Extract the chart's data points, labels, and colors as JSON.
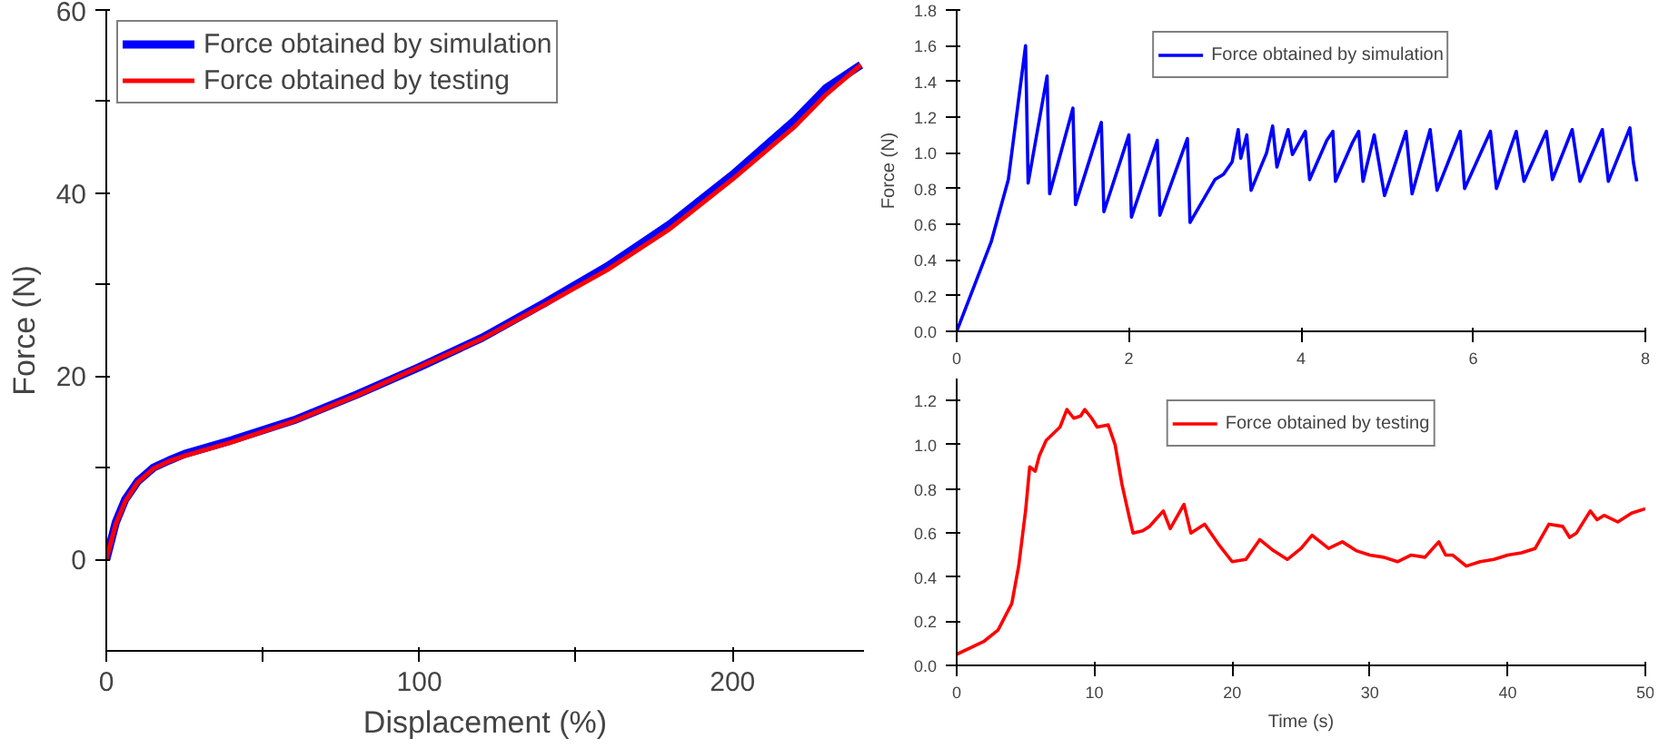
{
  "chart_data": [
    {
      "type": "line",
      "xlabel": "Displacement (%)",
      "ylabel": "Force (N)",
      "xlim": [
        0,
        242
      ],
      "ylim": [
        -10,
        60
      ],
      "xticks": [
        0,
        {
          "value": 50,
          "label": null
        },
        100,
        {
          "value": 150,
          "label": null
        },
        200
      ],
      "yticks": [
        0,
        {
          "value": 10,
          "label": null
        },
        20,
        {
          "value": 30,
          "label": null
        },
        40,
        {
          "value": 50,
          "label": null
        },
        60
      ],
      "legend": "top left",
      "grid": false,
      "line_style": "solid",
      "marker": "none",
      "series": [
        {
          "name": "Force obtained by simulation",
          "color": "#0000ff",
          "x": [
            0,
            3,
            6,
            10,
            15,
            20,
            25,
            40,
            60,
            80,
            100,
            120,
            140,
            160,
            180,
            200,
            220,
            230,
            241
          ],
          "values": [
            0,
            4,
            6.5,
            8.5,
            10,
            10.8,
            11.5,
            13,
            15.2,
            18,
            21,
            24.2,
            28,
            32,
            36.6,
            42,
            48,
            51.5,
            54
          ]
        },
        {
          "name": "Force obtained by testing",
          "color": "#ff0000",
          "x": [
            0,
            3,
            6,
            10,
            15,
            20,
            25,
            40,
            60,
            80,
            100,
            120,
            140,
            160,
            180,
            200,
            220,
            230,
            241
          ],
          "values": [
            0,
            3.8,
            6.3,
            8.4,
            9.9,
            10.7,
            11.3,
            12.8,
            15.1,
            17.9,
            21,
            24.1,
            27.8,
            31.6,
            36.1,
            41.5,
            47.3,
            50.8,
            54
          ]
        }
      ]
    },
    {
      "type": "line",
      "ylabel": "Force (N)",
      "xlim": [
        0,
        8
      ],
      "ylim": [
        0,
        1.8
      ],
      "xticks": [
        0,
        2,
        4,
        6,
        8
      ],
      "yticks": [
        {
          "value": 0,
          "label": "0.0"
        },
        0.2,
        0.4,
        0.6,
        0.8,
        {
          "value": 1,
          "label": "1.0"
        },
        1.2,
        1.4,
        1.6,
        1.8
      ],
      "legend": "top",
      "grid": false,
      "line_style": "solid",
      "marker": "none",
      "series": [
        {
          "name": "Force obtained by simulation",
          "color": "#0000ff",
          "x": [
            0,
            0.2,
            0.4,
            0.6,
            0.8,
            0.83,
            1.05,
            1.08,
            1.35,
            1.38,
            1.68,
            1.71,
            2.0,
            2.03,
            2.33,
            2.36,
            2.68,
            2.71,
            3.0,
            3.1,
            3.2,
            3.27,
            3.3,
            3.37,
            3.42,
            3.6,
            3.67,
            3.72,
            3.85,
            3.9,
            4.05,
            4.1,
            4.3,
            4.37,
            4.4,
            4.6,
            4.67,
            4.72,
            4.85,
            4.97,
            5.22,
            5.29,
            5.5,
            5.58,
            5.85,
            5.9,
            6.2,
            6.27,
            6.5,
            6.59,
            6.85,
            6.92,
            7.15,
            7.24,
            7.5,
            7.57,
            7.82,
            7.86,
            7.9
          ],
          "values": [
            0,
            0.25,
            0.5,
            0.85,
            1.6,
            0.83,
            1.43,
            0.77,
            1.25,
            0.71,
            1.17,
            0.67,
            1.1,
            0.64,
            1.07,
            0.65,
            1.08,
            0.61,
            0.85,
            0.88,
            0.95,
            1.13,
            0.97,
            1.1,
            0.79,
            1.0,
            1.15,
            0.92,
            1.13,
            0.99,
            1.12,
            0.85,
            1.07,
            1.12,
            0.84,
            1.06,
            1.12,
            0.84,
            1.1,
            0.76,
            1.12,
            0.77,
            1.13,
            0.79,
            1.12,
            0.8,
            1.12,
            0.8,
            1.12,
            0.84,
            1.12,
            0.85,
            1.13,
            0.84,
            1.13,
            0.84,
            1.14,
            0.95,
            0.84
          ]
        }
      ]
    },
    {
      "type": "line",
      "xlabel": "Time (s)",
      "xlim": [
        0,
        50
      ],
      "ylim": [
        0,
        1.3
      ],
      "xticks": [
        0,
        10,
        20,
        30,
        40,
        50
      ],
      "yticks": [
        {
          "value": 0,
          "label": "0.0"
        },
        0.2,
        0.4,
        0.6,
        0.8,
        {
          "value": 1,
          "label": "1.0"
        },
        1.2
      ],
      "legend": "top",
      "grid": false,
      "line_style": "solid",
      "marker": "none",
      "series": [
        {
          "name": "Force obtained by testing",
          "color": "#ff0000",
          "x": [
            0,
            2,
            3,
            4,
            4.5,
            5,
            5.3,
            5.7,
            6,
            6.5,
            7,
            7.5,
            8,
            8.5,
            9,
            9.3,
            9.8,
            10.2,
            11,
            11.5,
            12,
            12.5,
            12.8,
            13.5,
            14,
            15,
            15.5,
            16.5,
            17,
            18,
            19,
            20,
            21,
            22,
            23,
            24,
            25,
            25.8,
            27,
            28,
            29,
            30,
            31,
            32,
            33,
            34,
            35,
            35.5,
            36,
            37,
            38,
            39,
            40,
            41,
            42,
            43,
            44,
            44.5,
            45,
            46,
            46.5,
            47,
            48,
            49,
            50
          ],
          "values": [
            0.05,
            0.11,
            0.16,
            0.28,
            0.45,
            0.7,
            0.9,
            0.88,
            0.95,
            1.02,
            1.05,
            1.08,
            1.16,
            1.12,
            1.13,
            1.16,
            1.12,
            1.08,
            1.09,
            1.0,
            0.82,
            0.68,
            0.6,
            0.61,
            0.63,
            0.7,
            0.62,
            0.73,
            0.6,
            0.64,
            0.55,
            0.47,
            0.48,
            0.57,
            0.52,
            0.48,
            0.53,
            0.59,
            0.53,
            0.56,
            0.52,
            0.5,
            0.49,
            0.47,
            0.5,
            0.49,
            0.56,
            0.5,
            0.5,
            0.45,
            0.47,
            0.48,
            0.5,
            0.51,
            0.53,
            0.64,
            0.63,
            0.58,
            0.6,
            0.7,
            0.66,
            0.68,
            0.65,
            0.69,
            0.71
          ]
        }
      ]
    }
  ]
}
